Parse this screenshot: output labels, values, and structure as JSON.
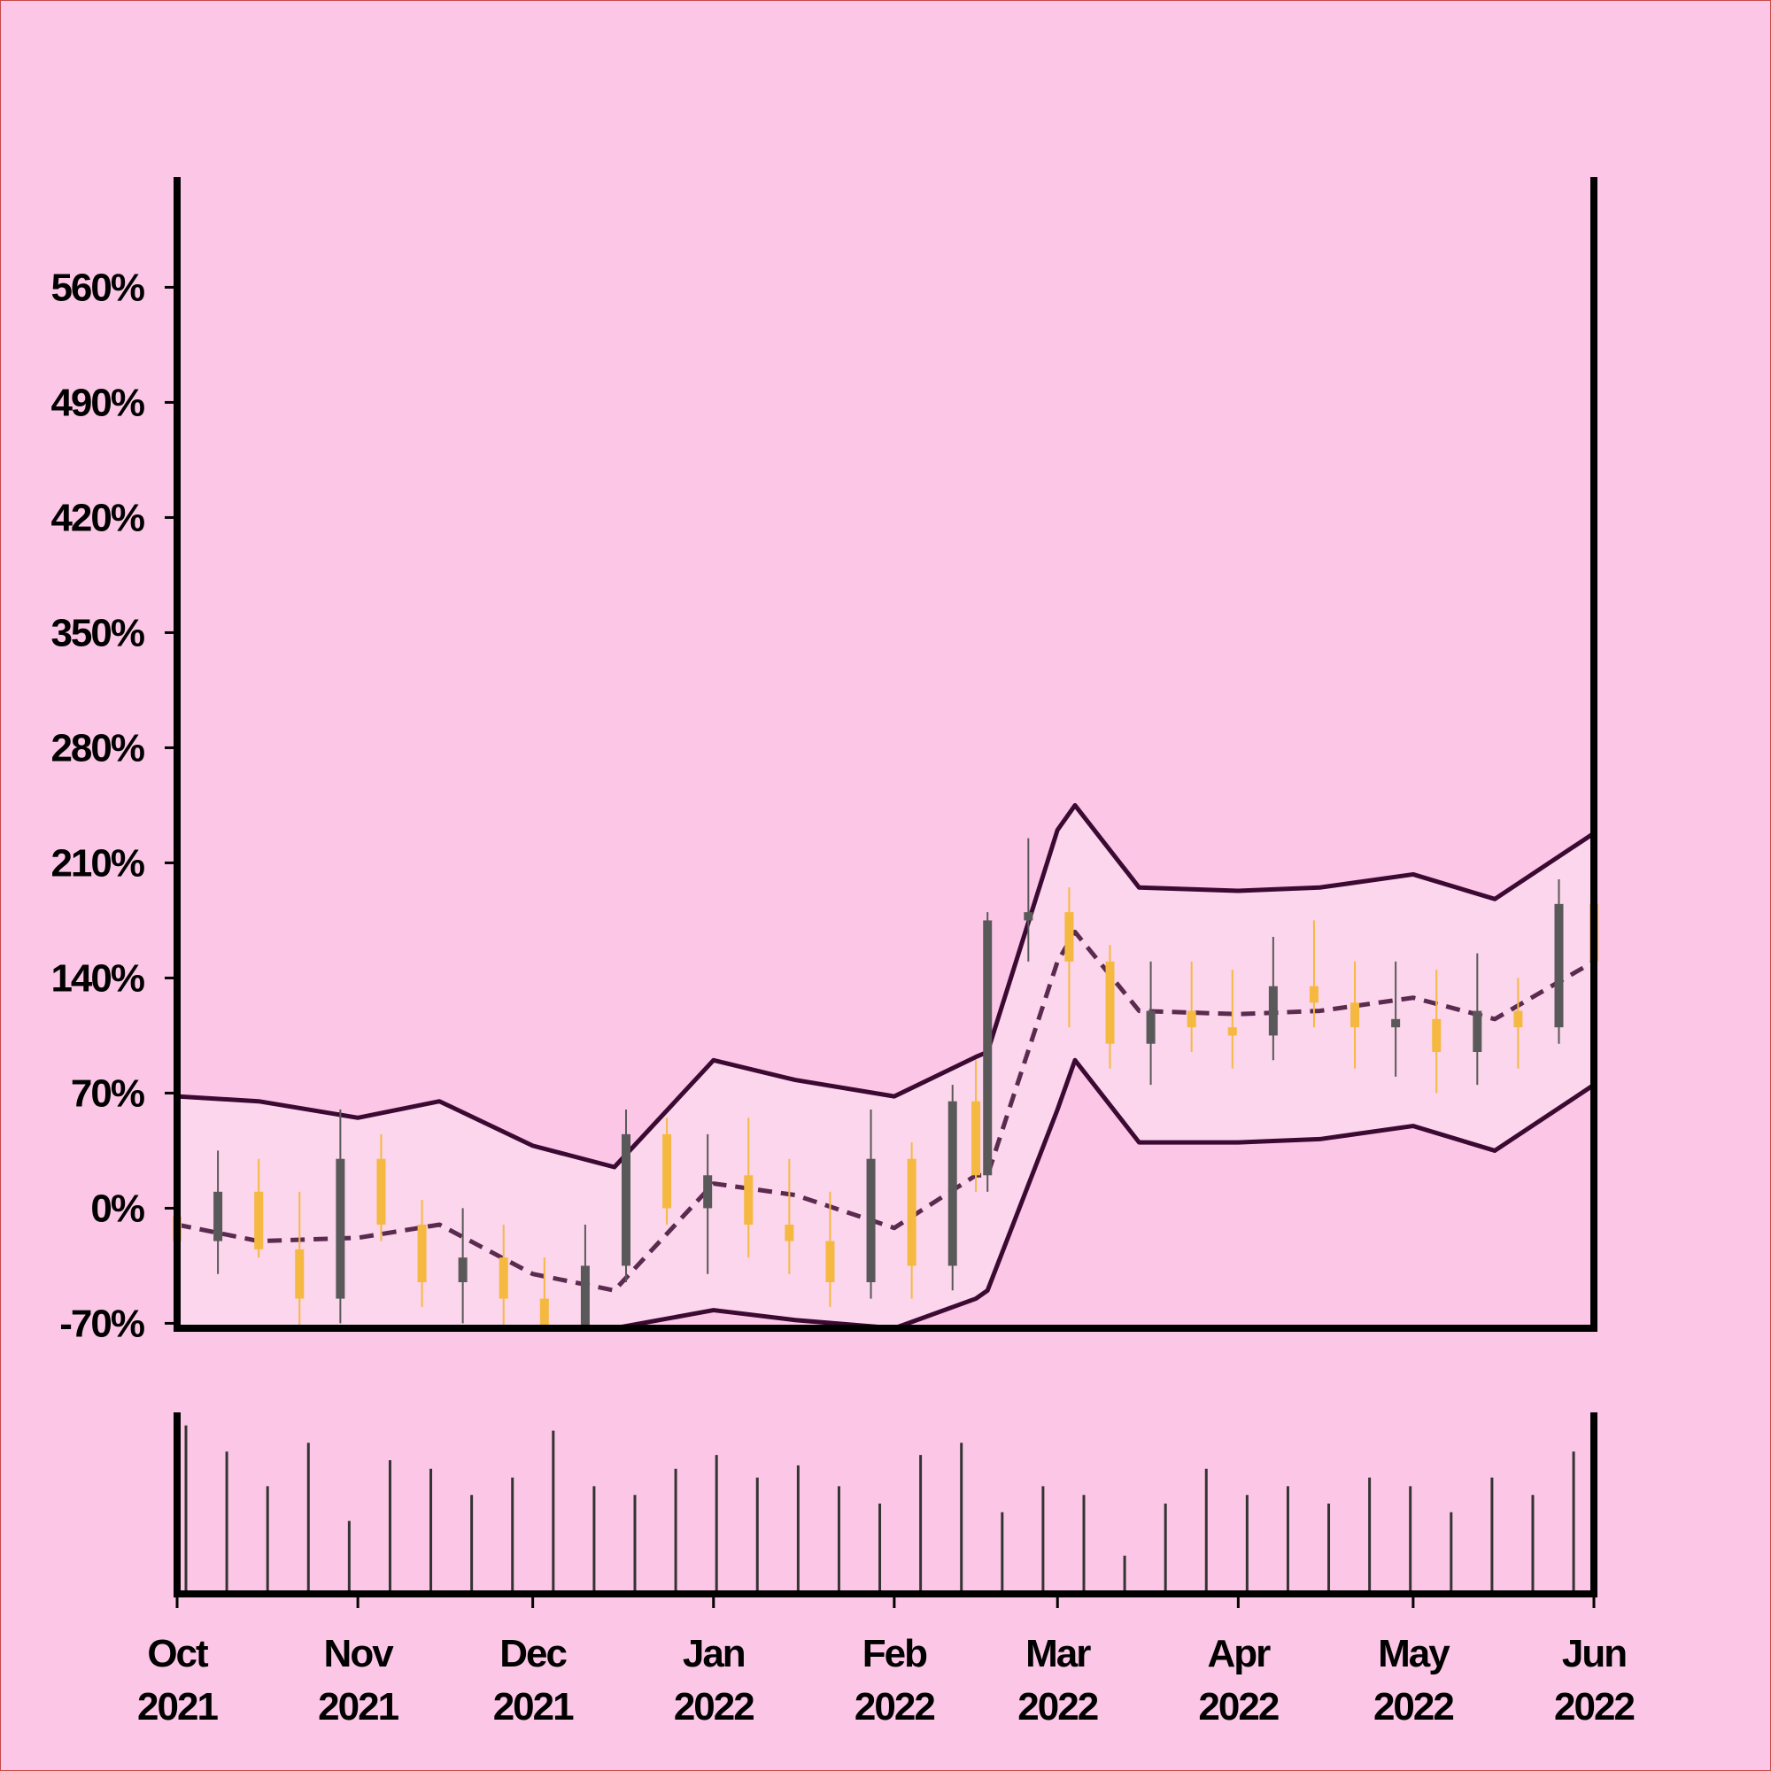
{
  "chart_data": {
    "type": "candlestick",
    "title": "",
    "xlabel": "",
    "ylabel": "",
    "y_unit": "%",
    "ylim": [
      -73,
      627
    ],
    "xlim": [
      "2021-10-01",
      "2022-06-01"
    ],
    "yticks": [
      -70,
      0,
      70,
      140,
      210,
      280,
      350,
      420,
      490,
      560
    ],
    "ytick_labels": [
      "-70%",
      "0%",
      "70%",
      "140%",
      "210%",
      "280%",
      "350%",
      "420%",
      "490%",
      "560%"
    ],
    "xticks": [
      "2021-10-01",
      "2021-11-01",
      "2021-12-01",
      "2022-01-01",
      "2022-02-01",
      "2022-03-01",
      "2022-04-01",
      "2022-05-01",
      "2022-06-01"
    ],
    "xtick_labels": [
      [
        "Oct",
        "2021"
      ],
      [
        "Nov",
        "2021"
      ],
      [
        "Dec",
        "2021"
      ],
      [
        "Jan",
        "2022"
      ],
      [
        "Feb",
        "2022"
      ],
      [
        "Mar",
        "2022"
      ],
      [
        "Apr",
        "2022"
      ],
      [
        "May",
        "2022"
      ],
      [
        "Jun",
        "2022"
      ]
    ],
    "grid": false,
    "colors": {
      "background": "#fcc7e6",
      "up_candle": "#595959",
      "down_candle": "#f5b942",
      "band_line": "#3b0a33",
      "band_fill": "#fbd6ec",
      "ma_line": "#5a2a4f",
      "volume_bar": "#333333",
      "axis": "#000000"
    },
    "bollinger_bands": {
      "dates": [
        "2021-10-01",
        "2021-10-15",
        "2021-11-01",
        "2021-11-15",
        "2021-12-01",
        "2021-12-15",
        "2022-01-01",
        "2022-01-15",
        "2022-02-01",
        "2022-02-15",
        "2022-02-17",
        "2022-03-01",
        "2022-03-04",
        "2022-03-15",
        "2022-04-01",
        "2022-04-15",
        "2022-05-01",
        "2022-05-15",
        "2022-06-01"
      ],
      "upper": [
        68,
        65,
        55,
        65,
        38,
        25,
        90,
        78,
        68,
        92,
        95,
        230,
        245,
        195,
        193,
        195,
        203,
        188,
        228
      ],
      "middle": [
        -10,
        -20,
        -18,
        -10,
        -40,
        -50,
        15,
        8,
        -12,
        20,
        20,
        150,
        168,
        120,
        118,
        120,
        128,
        115,
        150
      ],
      "lower": [
        -80,
        -90,
        -100,
        -100,
        -110,
        -120,
        -62,
        -68,
        -85,
        -55,
        -50,
        60,
        90,
        40,
        40,
        42,
        50,
        35,
        75
      ]
    },
    "candles": [
      {
        "date": "2021-10-01",
        "open": -5,
        "high": 20,
        "low": -45,
        "close": -20
      },
      {
        "date": "2021-10-08",
        "open": -20,
        "high": 35,
        "low": -40,
        "close": 10
      },
      {
        "date": "2021-10-15",
        "open": 10,
        "high": 30,
        "low": -30,
        "close": -25
      },
      {
        "date": "2021-10-22",
        "open": -25,
        "high": 10,
        "low": -75,
        "close": -55
      },
      {
        "date": "2021-10-29",
        "open": -55,
        "high": 60,
        "low": -70,
        "close": 30
      },
      {
        "date": "2021-11-05",
        "open": 30,
        "high": 45,
        "low": -20,
        "close": -10
      },
      {
        "date": "2021-11-12",
        "open": -10,
        "high": 5,
        "low": -60,
        "close": -45
      },
      {
        "date": "2021-11-19",
        "open": -45,
        "high": 0,
        "low": -70,
        "close": -30
      },
      {
        "date": "2021-11-26",
        "open": -30,
        "high": -10,
        "low": -80,
        "close": -55
      },
      {
        "date": "2021-12-03",
        "open": -55,
        "high": -30,
        "low": -95,
        "close": -75
      },
      {
        "date": "2021-12-10",
        "open": -75,
        "high": -10,
        "low": -90,
        "close": -35
      },
      {
        "date": "2021-12-17",
        "open": -35,
        "high": 60,
        "low": -45,
        "close": 45
      },
      {
        "date": "2021-12-24",
        "open": 45,
        "high": 55,
        "low": -10,
        "close": 0
      },
      {
        "date": "2021-12-31",
        "open": 0,
        "high": 45,
        "low": -40,
        "close": 20
      },
      {
        "date": "2022-01-07",
        "open": 20,
        "high": 55,
        "low": -30,
        "close": -10
      },
      {
        "date": "2022-01-14",
        "open": -10,
        "high": 30,
        "low": -40,
        "close": -20
      },
      {
        "date": "2022-01-21",
        "open": -20,
        "high": 10,
        "low": -60,
        "close": -45
      },
      {
        "date": "2022-01-28",
        "open": -45,
        "high": 60,
        "low": -55,
        "close": 30
      },
      {
        "date": "2022-02-04",
        "open": 30,
        "high": 40,
        "low": -55,
        "close": -35
      },
      {
        "date": "2022-02-11",
        "open": -35,
        "high": 75,
        "low": -50,
        "close": 65
      },
      {
        "date": "2022-02-15",
        "open": 65,
        "high": 90,
        "low": 10,
        "close": 20
      },
      {
        "date": "2022-02-17",
        "open": 20,
        "high": 180,
        "low": 10,
        "close": 175
      },
      {
        "date": "2022-02-24",
        "open": 175,
        "high": 225,
        "low": 150,
        "close": 180
      },
      {
        "date": "2022-03-03",
        "open": 180,
        "high": 195,
        "low": 110,
        "close": 150
      },
      {
        "date": "2022-03-10",
        "open": 150,
        "high": 160,
        "low": 85,
        "close": 100
      },
      {
        "date": "2022-03-17",
        "open": 100,
        "high": 150,
        "low": 75,
        "close": 120
      },
      {
        "date": "2022-03-24",
        "open": 120,
        "high": 150,
        "low": 95,
        "close": 110
      },
      {
        "date": "2022-03-31",
        "open": 110,
        "high": 145,
        "low": 85,
        "close": 105
      },
      {
        "date": "2022-04-07",
        "open": 105,
        "high": 165,
        "low": 90,
        "close": 135
      },
      {
        "date": "2022-04-14",
        "open": 135,
        "high": 175,
        "low": 110,
        "close": 125
      },
      {
        "date": "2022-04-21",
        "open": 125,
        "high": 150,
        "low": 85,
        "close": 110
      },
      {
        "date": "2022-04-28",
        "open": 110,
        "high": 150,
        "low": 80,
        "close": 115
      },
      {
        "date": "2022-05-05",
        "open": 115,
        "high": 145,
        "low": 70,
        "close": 95
      },
      {
        "date": "2022-05-12",
        "open": 95,
        "high": 155,
        "low": 75,
        "close": 120
      },
      {
        "date": "2022-05-19",
        "open": 120,
        "high": 140,
        "low": 85,
        "close": 110
      },
      {
        "date": "2022-05-26",
        "open": 110,
        "high": 200,
        "low": 100,
        "close": 185
      },
      {
        "date": "2022-06-01",
        "open": 185,
        "high": 210,
        "low": 140,
        "close": 150
      }
    ],
    "volume": {
      "ylim": [
        0,
        100
      ],
      "dates": [
        "2021-10-01",
        "2021-10-08",
        "2021-10-15",
        "2021-10-22",
        "2021-10-29",
        "2021-11-05",
        "2021-11-12",
        "2021-11-19",
        "2021-11-26",
        "2021-12-03",
        "2021-12-10",
        "2021-12-17",
        "2021-12-24",
        "2021-12-31",
        "2022-01-07",
        "2022-01-14",
        "2022-01-21",
        "2022-01-28",
        "2022-02-04",
        "2022-02-11",
        "2022-02-18",
        "2022-02-25",
        "2022-03-04",
        "2022-03-11",
        "2022-03-18",
        "2022-03-25",
        "2022-04-01",
        "2022-04-08",
        "2022-04-15",
        "2022-04-22",
        "2022-04-29",
        "2022-05-06",
        "2022-05-13",
        "2022-05-20",
        "2022-05-27"
      ],
      "values": [
        95,
        80,
        60,
        85,
        40,
        75,
        70,
        55,
        65,
        92,
        60,
        55,
        70,
        78,
        65,
        72,
        60,
        50,
        78,
        85,
        45,
        60,
        55,
        20,
        50,
        70,
        55,
        60,
        50,
        65,
        60,
        45,
        65,
        55,
        80
      ]
    }
  }
}
